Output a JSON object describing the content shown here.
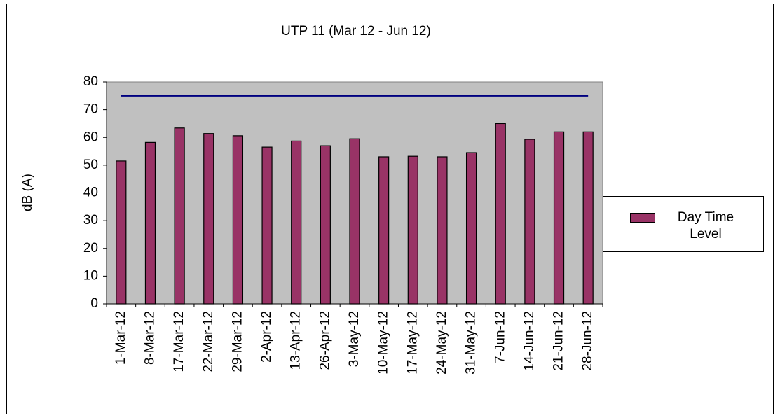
{
  "chart_data": {
    "type": "bar",
    "title": "UTP 11 (Mar 12 - Jun 12)",
    "y_label": "dB (A)",
    "categories": [
      "1-Mar-12",
      "8-Mar-12",
      "17-Mar-12",
      "22-Mar-12",
      "29-Mar-12",
      "2-Apr-12",
      "13-Apr-12",
      "26-Apr-12",
      "3-May-12",
      "10-May-12",
      "17-May-12",
      "24-May-12",
      "31-May-12",
      "7-Jun-12",
      "14-Jun-12",
      "21-Jun-12",
      "28-Jun-12"
    ],
    "series": [
      {
        "name": "Day Time Level",
        "color": "#993366",
        "values": [
          51.5,
          58.2,
          63.4,
          61.4,
          60.6,
          56.5,
          58.7,
          57,
          59.5,
          53,
          53.2,
          53,
          54.5,
          65,
          59.3,
          62,
          62
        ]
      }
    ],
    "limit_line": {
      "value": 75,
      "color": "#000080"
    },
    "ylim": [
      0,
      80
    ],
    "yticks": [
      0,
      10,
      20,
      30,
      40,
      50,
      60,
      70,
      80
    ],
    "grid": false,
    "legend": "right"
  }
}
